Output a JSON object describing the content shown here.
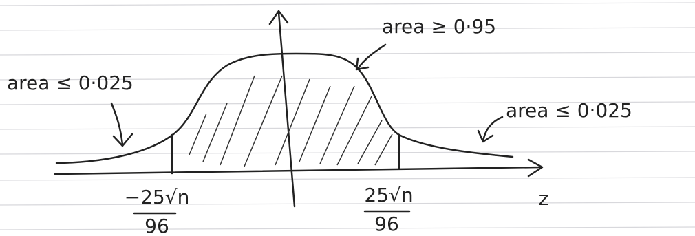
{
  "annotations": {
    "center": "area ≥ 0·95",
    "left_tail": "area ≤ 0·025",
    "right_tail": "area ≤ 0·025"
  },
  "bounds": {
    "lower": {
      "numerator": "−25√n",
      "denominator": "96"
    },
    "upper": {
      "numerator": "25√n",
      "denominator": "96"
    }
  },
  "axis_label": "z"
}
